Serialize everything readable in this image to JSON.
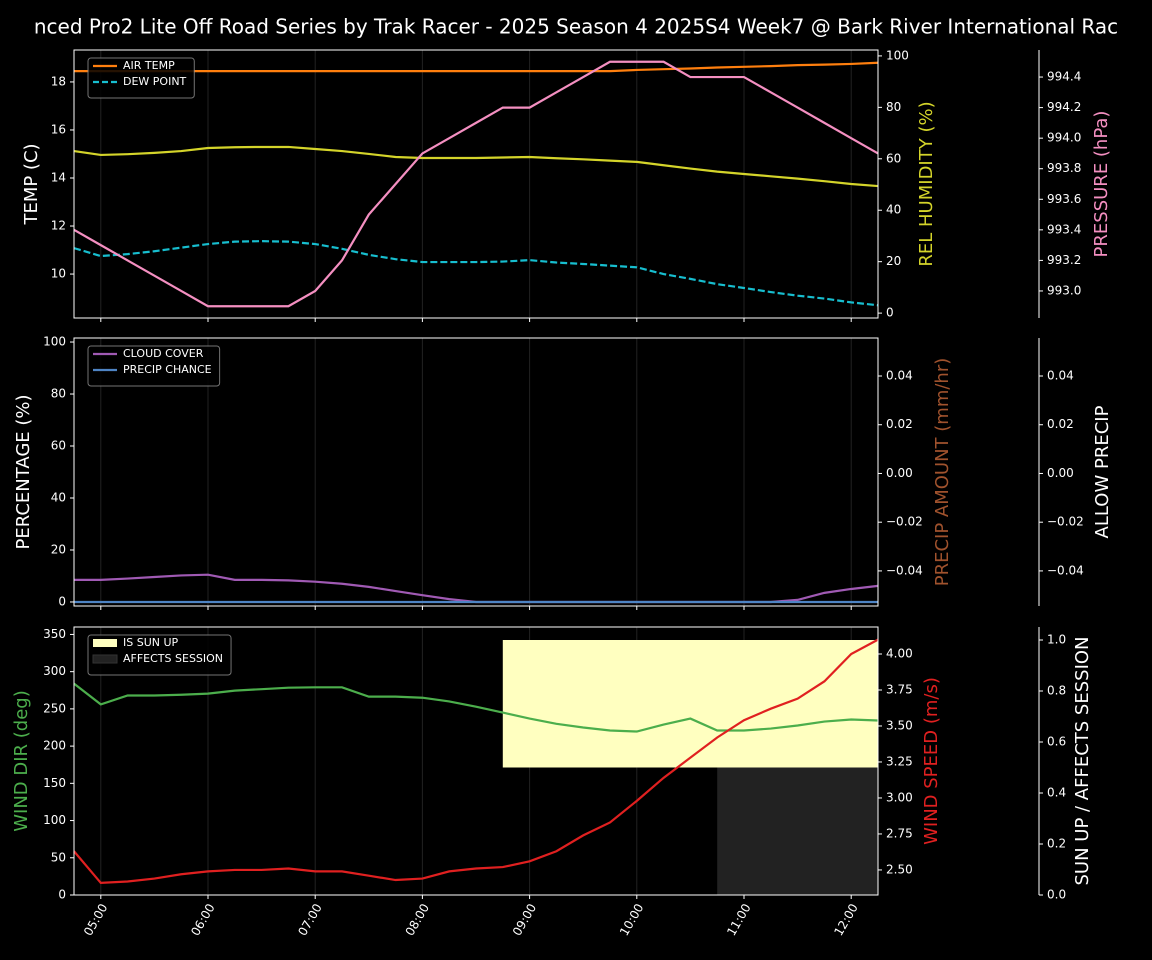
{
  "chart_data": [
    {
      "type": "line",
      "title": "nced Pro2 Lite Off Road Series by Trak Racer - 2025 Season 4 2025S4 Week7 @ Bark River International Rac",
      "x": [
        "04:45",
        "05:00",
        "05:15",
        "05:30",
        "05:45",
        "06:00",
        "06:15",
        "06:30",
        "06:45",
        "07:00",
        "07:15",
        "07:30",
        "07:45",
        "08:00",
        "08:15",
        "08:30",
        "08:45",
        "09:00",
        "09:15",
        "09:30",
        "09:45",
        "10:00",
        "10:15",
        "10:30",
        "10:45",
        "11:00",
        "11:15",
        "11:30",
        "11:45",
        "12:00",
        "12:15"
      ],
      "xlim": [
        "04:45",
        "12:15"
      ],
      "xticks": [
        "05:00",
        "06:00",
        "07:00",
        "08:00",
        "09:00",
        "10:00",
        "11:00",
        "12:00"
      ],
      "grid": true,
      "legend": "upper left",
      "ylabel": "TEMP (C)",
      "ylabel_color": "#ffffff",
      "ylim": [
        8.17,
        19.33
      ],
      "yticks": [
        10,
        12,
        14,
        16,
        18
      ],
      "y2label": "REL HUMIDITY (%)",
      "y2label_color": "#d4d42a",
      "y2lim": [
        -1.9,
        102.3
      ],
      "y2ticks": [
        0,
        20,
        40,
        60,
        80,
        100
      ],
      "y3label": "PRESSURE (hPa)",
      "y3label_color": "#f48fc1",
      "y3lim": [
        992.823,
        994.577
      ],
      "y3ticks": [
        {
          "value": 993.0,
          "label": "993.0"
        },
        {
          "value": 993.2,
          "label": "993.2"
        },
        {
          "value": 993.4,
          "label": "993.4"
        },
        {
          "value": 993.6,
          "label": "993.6"
        },
        {
          "value": 993.8,
          "label": "993.8"
        },
        {
          "value": 994.0,
          "label": "994.0"
        },
        {
          "value": 994.2,
          "label": "994.2"
        },
        {
          "value": 994.4,
          "label": "994.4"
        }
      ],
      "series": [
        {
          "name": "AIR TEMP",
          "color": "#ff7f0e",
          "axis": "y",
          "values": [
            18.45,
            18.45,
            18.45,
            18.45,
            18.45,
            18.45,
            18.45,
            18.45,
            18.45,
            18.45,
            18.45,
            18.45,
            18.45,
            18.45,
            18.45,
            18.45,
            18.45,
            18.45,
            18.45,
            18.45,
            18.45,
            18.5,
            18.53,
            18.56,
            18.6,
            18.63,
            18.66,
            18.7,
            18.72,
            18.75,
            18.8
          ]
        },
        {
          "name": "DEW POINT",
          "color": "#17becf",
          "axis": "y",
          "dashed": true,
          "values": [
            11.08,
            10.75,
            10.83,
            10.95,
            11.1,
            11.25,
            11.35,
            11.37,
            11.35,
            11.25,
            11.05,
            10.8,
            10.62,
            10.5,
            10.5,
            10.5,
            10.52,
            10.58,
            10.48,
            10.42,
            10.35,
            10.28,
            10.0,
            9.8,
            9.58,
            9.42,
            9.25,
            9.1,
            8.98,
            8.82,
            8.7
          ]
        },
        {
          "color": "#d4d42a",
          "axis": "y2",
          "values": [
            63,
            61.5,
            61.8,
            62.3,
            63,
            64.2,
            64.5,
            64.6,
            64.6,
            63.8,
            63,
            61.9,
            60.7,
            60.3,
            60.3,
            60.3,
            60.5,
            60.7,
            60.2,
            59.8,
            59.3,
            58.8,
            57.5,
            56.2,
            55,
            54.1,
            53.2,
            52.3,
            51.3,
            50.2,
            49.4
          ]
        },
        {
          "color": "#f48fc1",
          "axis": "y3",
          "values": [
            993.4,
            993.3,
            993.2,
            993.1,
            993.0,
            992.9,
            992.9,
            992.9,
            992.9,
            993.0,
            993.2,
            993.5,
            993.7,
            993.9,
            994.0,
            994.1,
            994.2,
            994.2,
            994.3,
            994.4,
            994.5,
            994.5,
            994.5,
            994.4,
            994.4,
            994.4,
            994.3,
            994.2,
            994.1,
            994.0,
            993.9
          ]
        }
      ]
    },
    {
      "type": "line",
      "x": [
        "04:45",
        "05:00",
        "05:15",
        "05:30",
        "05:45",
        "06:00",
        "06:15",
        "06:30",
        "06:45",
        "07:00",
        "07:15",
        "07:30",
        "07:45",
        "08:00",
        "08:15",
        "08:30",
        "08:45",
        "09:00",
        "09:15",
        "09:30",
        "09:45",
        "10:00",
        "10:15",
        "10:30",
        "10:45",
        "11:00",
        "11:15",
        "11:30",
        "11:45",
        "12:00",
        "12:15"
      ],
      "xlim": [
        "04:45",
        "12:15"
      ],
      "xticks": [
        "05:00",
        "06:00",
        "07:00",
        "08:00",
        "09:00",
        "10:00",
        "11:00",
        "12:00"
      ],
      "grid": true,
      "legend": "upper left",
      "ylabel": "PERCENTAGE (%)",
      "ylabel_color": "#ffffff",
      "ylim": [
        -1.55,
        101.55
      ],
      "yticks": [
        0,
        20,
        40,
        60,
        80,
        100
      ],
      "y2label": "PRECIP AMOUNT (mm/hr)",
      "y2label_color": "#a0522d",
      "y2lim": [
        -0.0544,
        0.0556
      ],
      "y2ticks": [
        {
          "value": -0.04,
          "label": "−0.04"
        },
        {
          "value": -0.02,
          "label": "−0.02"
        },
        {
          "value": 0.0,
          "label": "0.00"
        },
        {
          "value": 0.02,
          "label": "0.02"
        },
        {
          "value": 0.04,
          "label": "0.04"
        }
      ],
      "y3label": "ALLOW PRECIP",
      "y3label_color": "#ffffff",
      "y3lim": [
        -0.0544,
        0.0556
      ],
      "y3ticks": [
        {
          "value": -0.04,
          "label": "−0.04"
        },
        {
          "value": -0.02,
          "label": "−0.02"
        },
        {
          "value": 0.0,
          "label": "0.00"
        },
        {
          "value": 0.02,
          "label": "0.02"
        },
        {
          "value": 0.04,
          "label": "0.04"
        }
      ],
      "series": [
        {
          "name": "CLOUD COVER",
          "color": "#a05ab4",
          "axis": "y",
          "values": [
            8.5,
            8.5,
            9,
            9.6,
            10.2,
            10.5,
            8.5,
            8.5,
            8.3,
            7.8,
            7,
            5.8,
            4.2,
            2.6,
            1.1,
            0,
            0,
            0,
            0,
            0,
            0,
            0,
            0,
            0,
            0,
            0,
            0,
            0.8,
            3.5,
            5,
            6.2
          ]
        },
        {
          "name": "PRECIP CHANCE",
          "color": "#4e84c4",
          "axis": "y",
          "values": [
            0,
            0,
            0,
            0,
            0,
            0,
            0,
            0,
            0,
            0,
            0,
            0,
            0,
            0,
            0,
            0,
            0,
            0,
            0,
            0,
            0,
            0,
            0,
            0,
            0,
            0,
            0,
            0,
            0,
            0,
            0
          ]
        }
      ]
    },
    {
      "type": "line",
      "x": [
        "04:45",
        "05:00",
        "05:15",
        "05:30",
        "05:45",
        "06:00",
        "06:15",
        "06:30",
        "06:45",
        "07:00",
        "07:15",
        "07:30",
        "07:45",
        "08:00",
        "08:15",
        "08:30",
        "08:45",
        "09:00",
        "09:15",
        "09:30",
        "09:45",
        "10:00",
        "10:15",
        "10:30",
        "10:45",
        "11:00",
        "11:15",
        "11:30",
        "11:45",
        "12:00",
        "12:15"
      ],
      "xlim": [
        "04:45",
        "12:15"
      ],
      "xticks": [
        "05:00",
        "06:00",
        "07:00",
        "08:00",
        "09:00",
        "10:00",
        "11:00",
        "12:00"
      ],
      "grid": true,
      "legend": "upper left",
      "ylabel": "WIND DIR (deg)",
      "ylabel_color": "#4cae4c",
      "ylim": [
        0,
        360
      ],
      "yticks": [
        0,
        50,
        100,
        150,
        200,
        250,
        300,
        350
      ],
      "y2label": "WIND SPEED (m/s)",
      "y2label_color": "#e02020",
      "y2lim": [
        2.326,
        4.1875
      ],
      "y2ticks": [
        {
          "value": 2.5,
          "label": "2.50"
        },
        {
          "value": 2.75,
          "label": "2.75"
        },
        {
          "value": 3.0,
          "label": "3.00"
        },
        {
          "value": 3.25,
          "label": "3.25"
        },
        {
          "value": 3.5,
          "label": "3.50"
        },
        {
          "value": 3.75,
          "label": "3.75"
        },
        {
          "value": 4.0,
          "label": "4.00"
        }
      ],
      "y3label": "SUN UP / AFFECTS SESSION",
      "y3label_color": "#ffffff",
      "y3lim": [
        0,
        1.051
      ],
      "y3ticks": [
        {
          "value": 0.0,
          "label": "0.0"
        },
        {
          "value": 0.2,
          "label": "0.2"
        },
        {
          "value": 0.4,
          "label": "0.4"
        },
        {
          "value": 0.6,
          "label": "0.6"
        },
        {
          "value": 0.8,
          "label": "0.8"
        },
        {
          "value": 1.0,
          "label": "1.0"
        }
      ],
      "series": [
        {
          "name": "IS SUN UP",
          "color": "#ffffc0",
          "axis": "y3",
          "fill": true,
          "base": 0.5,
          "values": [
            0,
            0,
            0,
            0,
            0,
            0,
            0,
            0,
            0,
            0,
            0,
            0,
            0,
            0,
            0,
            0,
            1,
            1,
            1,
            1,
            1,
            1,
            1,
            1,
            1,
            1,
            1,
            1,
            1,
            1,
            1
          ]
        },
        {
          "name": "AFFECTS SESSION",
          "color": "#222222",
          "axis": "y3",
          "fill": true,
          "base": 0,
          "values": [
            0,
            0,
            0,
            0,
            0,
            0,
            0,
            0,
            0,
            0,
            0,
            0,
            0,
            0,
            0,
            0,
            0,
            0,
            0,
            0,
            0,
            0,
            0,
            0,
            0.5,
            0.5,
            0.5,
            0.5,
            0.5,
            0.5,
            0.5
          ]
        },
        {
          "color": "#4cae4c",
          "axis": "y",
          "values": [
            284,
            256,
            268,
            268,
            269,
            270.5,
            274.5,
            276.5,
            278.5,
            279,
            279,
            266.5,
            266.5,
            265,
            260,
            253,
            245,
            237,
            230,
            225,
            221,
            219.6,
            229,
            237,
            221,
            221,
            223.6,
            227.7,
            233,
            235.7,
            234.4
          ]
        },
        {
          "color": "#e02020",
          "axis": "y2",
          "values": [
            2.63,
            2.41,
            2.42,
            2.44,
            2.47,
            2.49,
            2.5,
            2.5,
            2.51,
            2.49,
            2.49,
            2.46,
            2.43,
            2.44,
            2.49,
            2.51,
            2.52,
            2.56,
            2.63,
            2.74,
            2.83,
            2.98,
            3.14,
            3.28,
            3.42,
            3.54,
            3.62,
            3.69,
            3.81,
            4.0,
            4.1
          ]
        }
      ]
    }
  ]
}
